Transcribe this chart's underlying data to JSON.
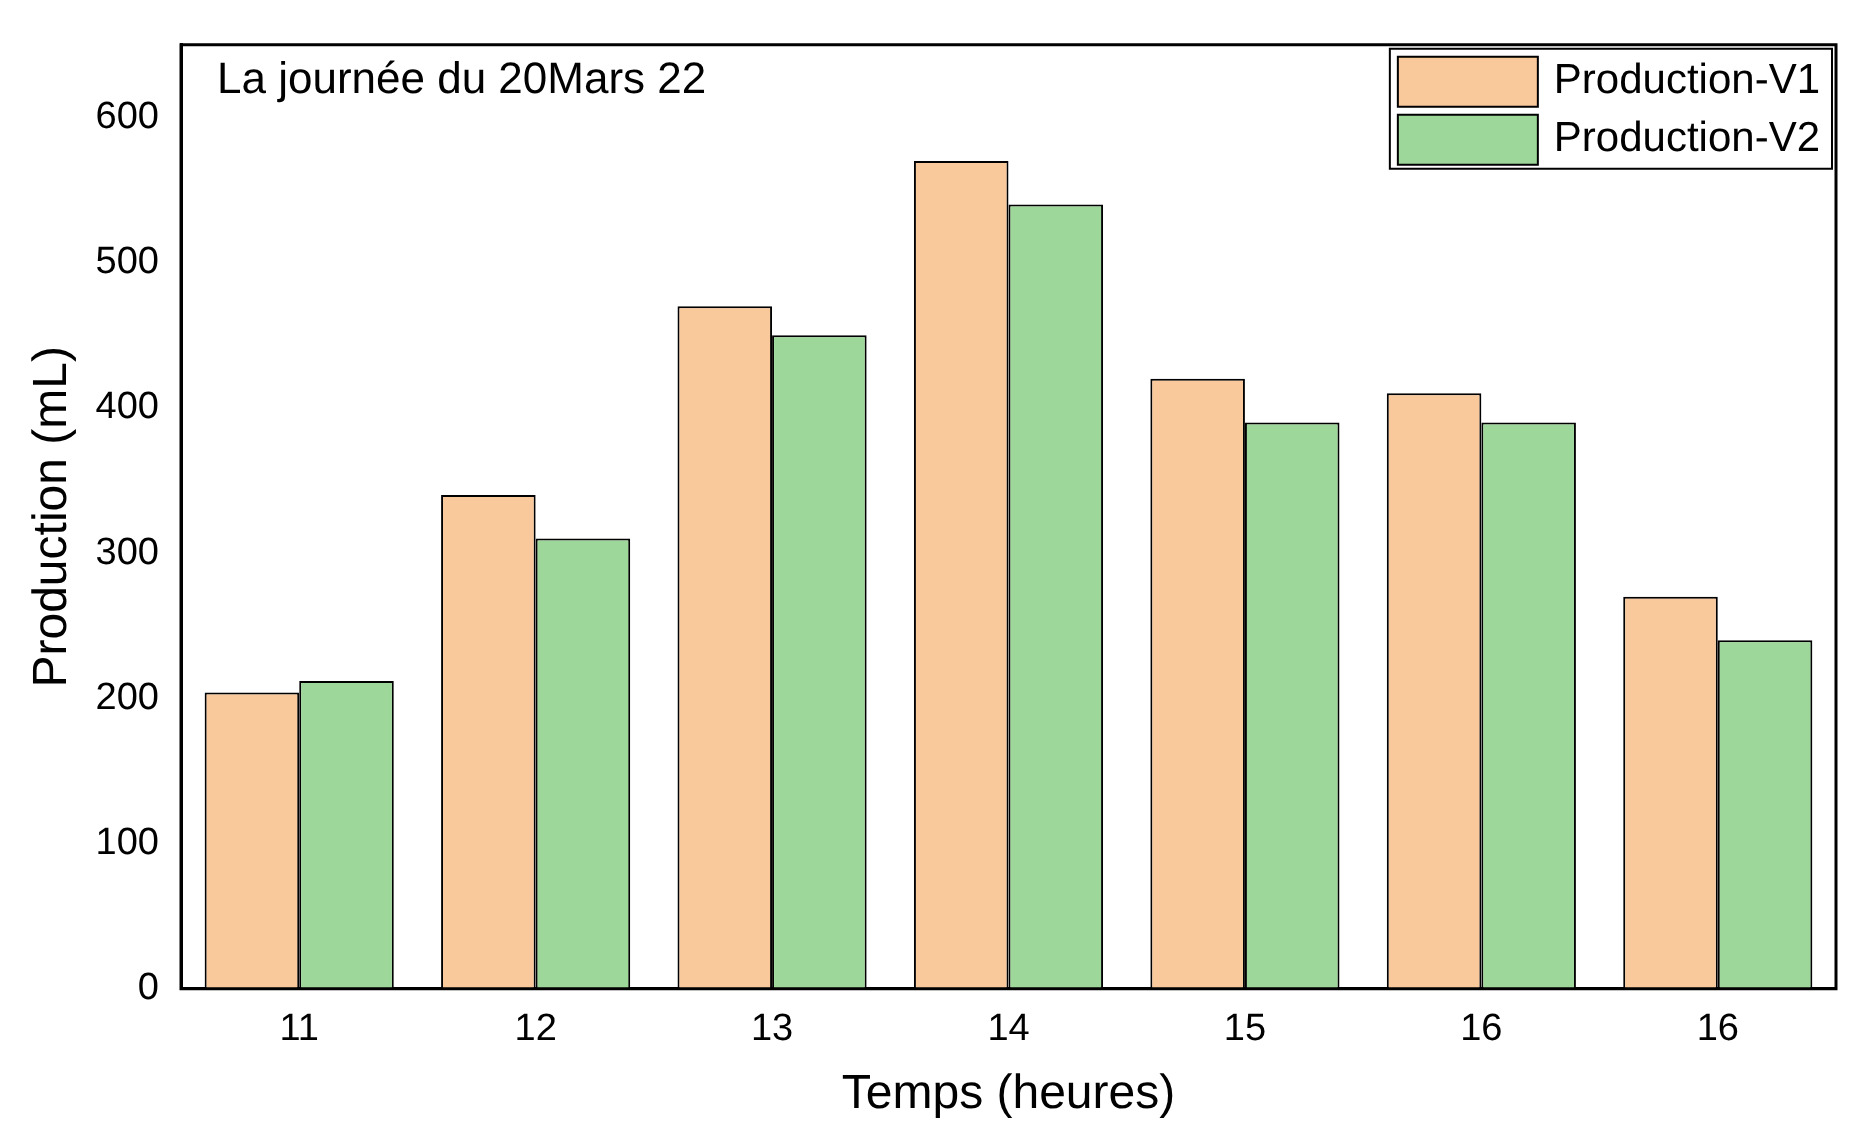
{
  "chart_data": {
    "type": "bar",
    "title": "La journée du 20Mars 22",
    "xlabel": "Temps (heures)",
    "ylabel": "Production (mL)",
    "categories": [
      "11",
      "12",
      "13",
      "14",
      "15",
      "16",
      "16"
    ],
    "series": [
      {
        "name": "Production-V1",
        "color": "#f9c89b",
        "values": [
          204,
          340,
          470,
          570,
          420,
          410,
          270
        ]
      },
      {
        "name": "Production-V2",
        "color": "#9dd89a",
        "values": [
          212,
          310,
          450,
          540,
          390,
          390,
          240
        ]
      }
    ],
    "ylim": [
      0,
      650
    ],
    "yticks": [
      0,
      100,
      200,
      300,
      400,
      500,
      600
    ],
    "grid": false,
    "legend": "top right"
  }
}
